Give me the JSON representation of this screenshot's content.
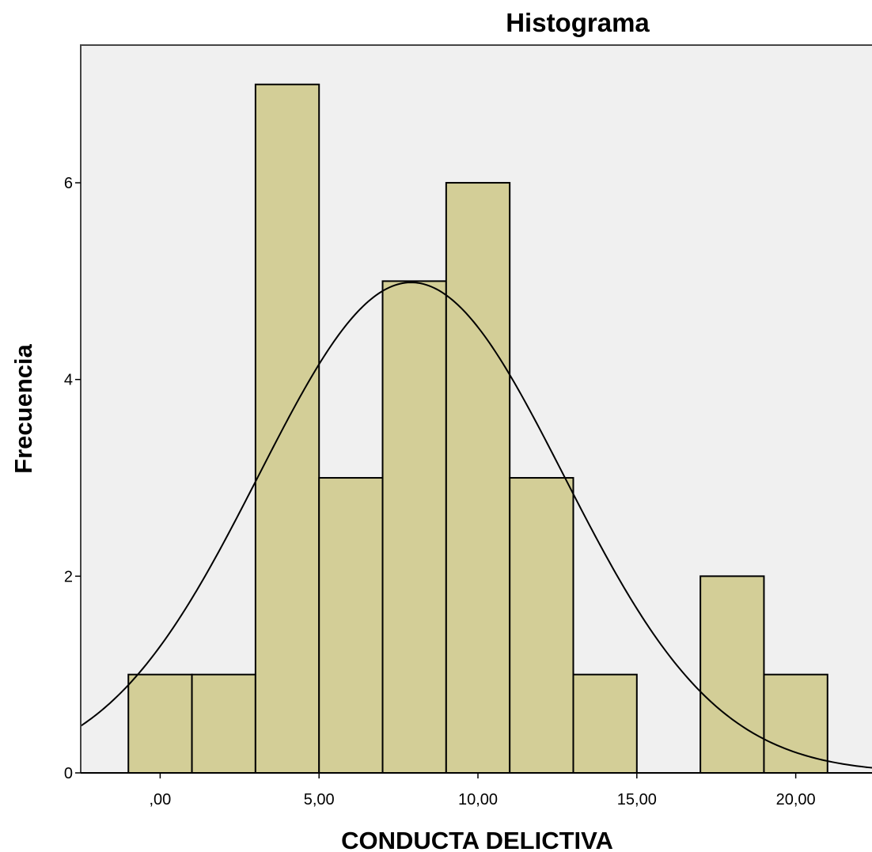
{
  "chart_data": {
    "type": "bar",
    "title": "Histograma",
    "xlabel": "CONDUCTA DELICTIVA",
    "ylabel": "Frecuencia",
    "bin_width": 2,
    "bins": [
      {
        "start": -1,
        "end": 1,
        "count": 1
      },
      {
        "start": 1,
        "end": 3,
        "count": 1
      },
      {
        "start": 3,
        "end": 5,
        "count": 7
      },
      {
        "start": 5,
        "end": 7,
        "count": 3
      },
      {
        "start": 7,
        "end": 9,
        "count": 5
      },
      {
        "start": 9,
        "end": 11,
        "count": 6
      },
      {
        "start": 11,
        "end": 13,
        "count": 3
      },
      {
        "start": 13,
        "end": 15,
        "count": 1
      },
      {
        "start": 15,
        "end": 17,
        "count": 0
      },
      {
        "start": 17,
        "end": 19,
        "count": 2
      },
      {
        "start": 19,
        "end": 21,
        "count": 1
      }
    ],
    "xlim": [
      -2.5,
      22.4
    ],
    "ylim": [
      0,
      7.4
    ],
    "xticks": [
      0,
      5,
      10,
      15,
      20
    ],
    "xtick_labels": [
      ",00",
      "5,00",
      "10,00",
      "15,00",
      "20,00"
    ],
    "yticks": [
      0,
      2,
      4,
      6
    ],
    "ytick_labels": [
      "0",
      "2",
      "4",
      "6"
    ],
    "normal_curve": {
      "mean": 7.9,
      "sd": 4.8,
      "n": 30
    },
    "grid": false,
    "colors": {
      "plot_background": "#f0f0f0",
      "bar_fill": "#d3ce97",
      "bar_stroke": "#000000",
      "curve": "#000000"
    }
  }
}
